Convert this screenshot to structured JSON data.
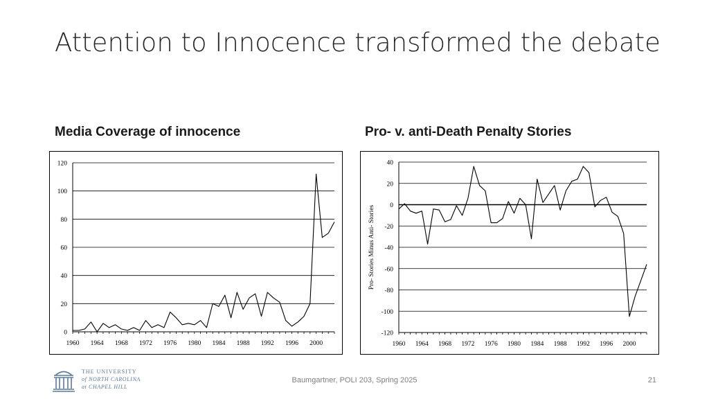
{
  "slide": {
    "title": "Attention to Innocence transformed the debate",
    "footer": "Baumgartner, POLI 203, Spring 2025",
    "page_number": "21"
  },
  "logo": {
    "line1": "THE UNIVERSITY",
    "line2": "of NORTH CAROLINA",
    "line3": "at CHAPEL HILL"
  },
  "chart_data": [
    {
      "type": "line",
      "title": "Media Coverage of innocence",
      "xlabel": "",
      "ylabel": "",
      "xlim": [
        1960,
        2002
      ],
      "ylim": [
        0,
        120
      ],
      "yticks": [
        0,
        20,
        40,
        60,
        80,
        100,
        120
      ],
      "xticks": [
        1960,
        1964,
        1968,
        1972,
        1976,
        1980,
        1984,
        1988,
        1992,
        1996,
        2000
      ],
      "grid": "horizontal",
      "x": [
        1960,
        1961,
        1962,
        1963,
        1964,
        1965,
        1966,
        1967,
        1968,
        1969,
        1970,
        1971,
        1972,
        1973,
        1974,
        1975,
        1976,
        1977,
        1978,
        1979,
        1980,
        1981,
        1982,
        1983,
        1984,
        1985,
        1986,
        1987,
        1988,
        1989,
        1990,
        1991,
        1992,
        1993,
        1994,
        1995,
        1996,
        1997,
        1998,
        1999,
        2000,
        2001,
        2002,
        2003
      ],
      "values": [
        1,
        1,
        2,
        7,
        0,
        6,
        3,
        5,
        2,
        1,
        3,
        1,
        8,
        3,
        5,
        3,
        14,
        10,
        5,
        6,
        5,
        8,
        3,
        20,
        18,
        26,
        10,
        28,
        16,
        24,
        27,
        11,
        28,
        24,
        21,
        8,
        4,
        7,
        11,
        20,
        112,
        67,
        70,
        78
      ]
    },
    {
      "type": "line",
      "title": "Pro- v. anti-Death Penalty Stories",
      "xlabel": "",
      "ylabel": "Pro- Stories Minus Anti- Stories",
      "xlim": [
        1960,
        2002
      ],
      "ylim": [
        -120,
        40
      ],
      "yticks": [
        -120,
        -100,
        -80,
        -60,
        -40,
        -20,
        0,
        20,
        40
      ],
      "xticks": [
        1960,
        1964,
        1968,
        1972,
        1976,
        1980,
        1984,
        1988,
        1992,
        1996,
        2000
      ],
      "grid": "horizontal",
      "x": [
        1960,
        1961,
        1962,
        1963,
        1964,
        1965,
        1966,
        1967,
        1968,
        1969,
        1970,
        1971,
        1972,
        1973,
        1974,
        1975,
        1976,
        1977,
        1978,
        1979,
        1980,
        1981,
        1982,
        1983,
        1984,
        1985,
        1986,
        1987,
        1988,
        1989,
        1990,
        1991,
        1992,
        1993,
        1994,
        1995,
        1996,
        1997,
        1998,
        1999,
        2000,
        2001,
        2002,
        2003
      ],
      "values": [
        -4,
        1,
        -6,
        -8,
        -6,
        -37,
        -4,
        -5,
        -16,
        -14,
        -1,
        -10,
        6,
        36,
        18,
        13,
        -17,
        -17,
        -13,
        3,
        -8,
        6,
        0,
        -32,
        24,
        2,
        10,
        18,
        -5,
        13,
        22,
        24,
        36,
        30,
        -2,
        4,
        7,
        -7,
        -11,
        -27,
        -105,
        -86,
        -71,
        -56
      ]
    }
  ]
}
